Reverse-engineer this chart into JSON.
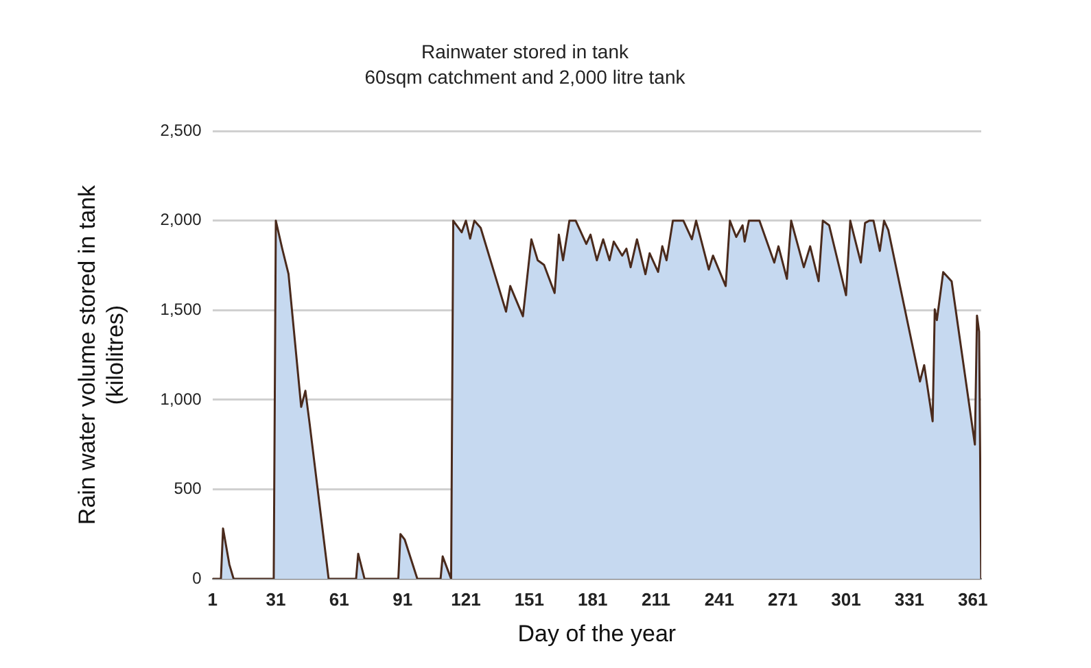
{
  "chart_data": {
    "type": "area",
    "title": "Rainwater stored in tank",
    "subtitle": "60sqm catchment and 2,000 litre tank",
    "xlabel": "Day of the year",
    "ylabel": "Rain water volume stored in tank (kilolitres)",
    "x": [
      1,
      5,
      6,
      9,
      11,
      30,
      31,
      34,
      37,
      43,
      45,
      47,
      56,
      69,
      70,
      73,
      89,
      90,
      92,
      98,
      109,
      110,
      114,
      115,
      119,
      121,
      123,
      125,
      128,
      140,
      142,
      148,
      152,
      155,
      158,
      163,
      165,
      167,
      170,
      173,
      178,
      180,
      183,
      186,
      189,
      191,
      195,
      197,
      199,
      202,
      206,
      208,
      212,
      214,
      216,
      219,
      224,
      228,
      230,
      236,
      238,
      244,
      246,
      249,
      252,
      253,
      255,
      260,
      267,
      269,
      273,
      275,
      278,
      281,
      284,
      288,
      290,
      293,
      301,
      303,
      308,
      310,
      312,
      314,
      317,
      319,
      321,
      336,
      338,
      342,
      343,
      344,
      347,
      351,
      362,
      363,
      364,
      365
    ],
    "series": [
      {
        "color": "#c6d9f0",
        "values": [
          0,
          0,
          281,
          80,
          0,
          0,
          2000,
          1845,
          1703,
          960,
          1050,
          867,
          0,
          0,
          140,
          0,
          0,
          250,
          220,
          0,
          0,
          125,
          0,
          2000,
          1935,
          2000,
          1900,
          2000,
          1960,
          1492,
          1635,
          1466,
          1896,
          1779,
          1753,
          1596,
          1922,
          1779,
          2000,
          2000,
          1870,
          1922,
          1779,
          1896,
          1779,
          1883,
          1805,
          1844,
          1740,
          1896,
          1701,
          1818,
          1714,
          1857,
          1779,
          2000,
          2000,
          1896,
          2000,
          1727,
          1805,
          1635,
          2000,
          1909,
          1974,
          1883,
          2000,
          2000,
          1766,
          1857,
          1675,
          2000,
          1870,
          1740,
          1857,
          1662,
          2000,
          1974,
          1584,
          2000,
          1766,
          1987,
          2000,
          2000,
          1831,
          2000,
          1948,
          1102,
          1193,
          880,
          1505,
          1445,
          1713,
          1661,
          750,
          1470,
          1380,
          0
        ]
      }
    ],
    "xlim": [
      1,
      365
    ],
    "xticks": [
      1,
      31,
      61,
      91,
      121,
      151,
      181,
      211,
      241,
      271,
      301,
      331,
      361
    ],
    "ylim": [
      0,
      2500
    ],
    "yticks": [
      0,
      500,
      {
        "value": 1000,
        "label": "1,000"
      },
      {
        "value": 1500,
        "label": "1,500"
      },
      {
        "value": 2000,
        "label": "2,000"
      },
      {
        "value": 2500,
        "label": "2,500"
      }
    ],
    "grid": "y",
    "legend": false,
    "marker": "none"
  }
}
